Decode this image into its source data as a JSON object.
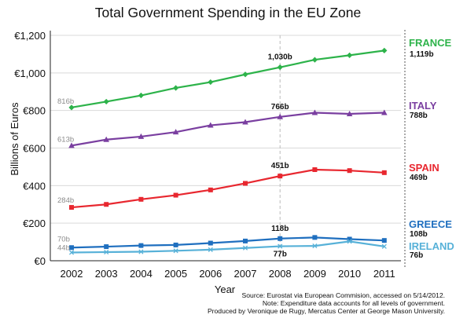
{
  "chart_data": {
    "type": "line",
    "title": "Total Government Spending in the EU Zone",
    "xlabel": "Year",
    "ylabel": "Billions of Euros",
    "x": [
      2002,
      2003,
      2004,
      2005,
      2006,
      2007,
      2008,
      2009,
      2010,
      2011
    ],
    "ylim": [
      0,
      1200
    ],
    "yticks": [
      0,
      200,
      400,
      600,
      800,
      1000,
      1200
    ],
    "ytick_labels": [
      "€0",
      "€200",
      "€400",
      "€600",
      "€800",
      "€1,000",
      "€1,200"
    ],
    "grid": "horizontal",
    "reference_line_x": 2008,
    "series": [
      {
        "name": "FRANCE",
        "color": "#2db34a",
        "marker": "diamond",
        "values": [
          816,
          847,
          880,
          920,
          951,
          992,
          1030,
          1070,
          1094,
          1119
        ],
        "labels": {
          "2002": "816b",
          "2008": "1,030b",
          "2011": "1,119b"
        }
      },
      {
        "name": "ITALY",
        "color": "#7a3fa0",
        "marker": "triangle",
        "values": [
          613,
          645,
          661,
          685,
          721,
          738,
          766,
          788,
          782,
          788
        ],
        "labels": {
          "2002": "613b",
          "2008": "766b",
          "2011": "788b"
        }
      },
      {
        "name": "SPAIN",
        "color": "#e8272f",
        "marker": "square",
        "values": [
          284,
          300,
          327,
          349,
          377,
          412,
          451,
          485,
          480,
          469
        ],
        "labels": {
          "2002": "284b",
          "2008": "451b",
          "2011": "469b"
        }
      },
      {
        "name": "GREECE",
        "color": "#1f6fbf",
        "marker": "square",
        "values": [
          70,
          75,
          81,
          84,
          94,
          105,
          118,
          124,
          115,
          108
        ],
        "labels": {
          "2002": "70b",
          "2008": "118b",
          "2011": "108b"
        }
      },
      {
        "name": "IRELAND",
        "color": "#57b1d8",
        "marker": "x",
        "values": [
          44,
          46,
          48,
          53,
          59,
          68,
          77,
          79,
          103,
          76
        ],
        "labels": {
          "2002": "44b",
          "2008": "77b",
          "2011": "76b"
        }
      }
    ]
  },
  "source_lines": [
    "Source: Eurostat via European Commision, accessed on 5/14/2012.",
    "Note: Expenditure data accounts for all levels of government.",
    "Produced by Veronique de Rugy, Mercatus Center at George Mason University."
  ]
}
